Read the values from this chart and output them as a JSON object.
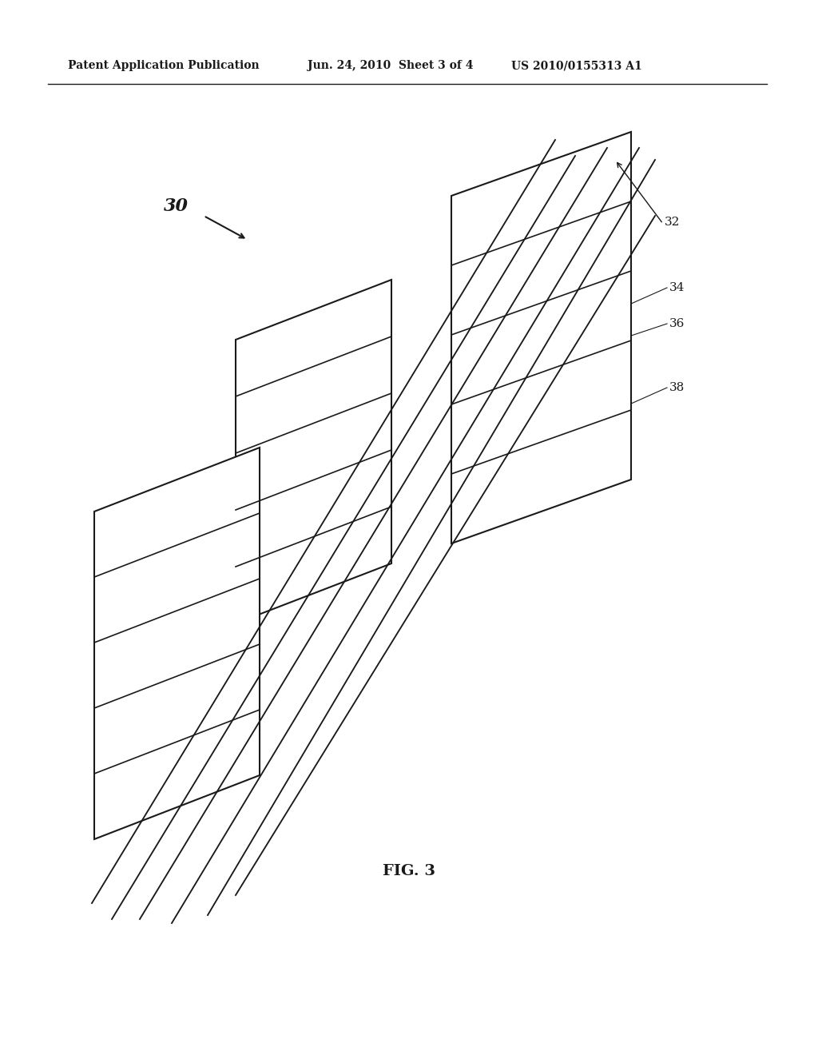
{
  "background_color": "#ffffff",
  "line_color": "#1a1a1a",
  "line_width": 1.5,
  "header_left": "Patent Application Publication",
  "header_mid": "Jun. 24, 2010  Sheet 3 of 4",
  "header_right": "US 2010/0155313 A1",
  "fig_label": "FIG. 3",
  "label_30": "30",
  "label_32": "32",
  "label_34": "34",
  "label_36": "36",
  "label_38": "38",
  "panel_color": "#ffffff",
  "panel_edge_color": "#1a1a1a",
  "panel_stripe_color": "#1a1a1a"
}
